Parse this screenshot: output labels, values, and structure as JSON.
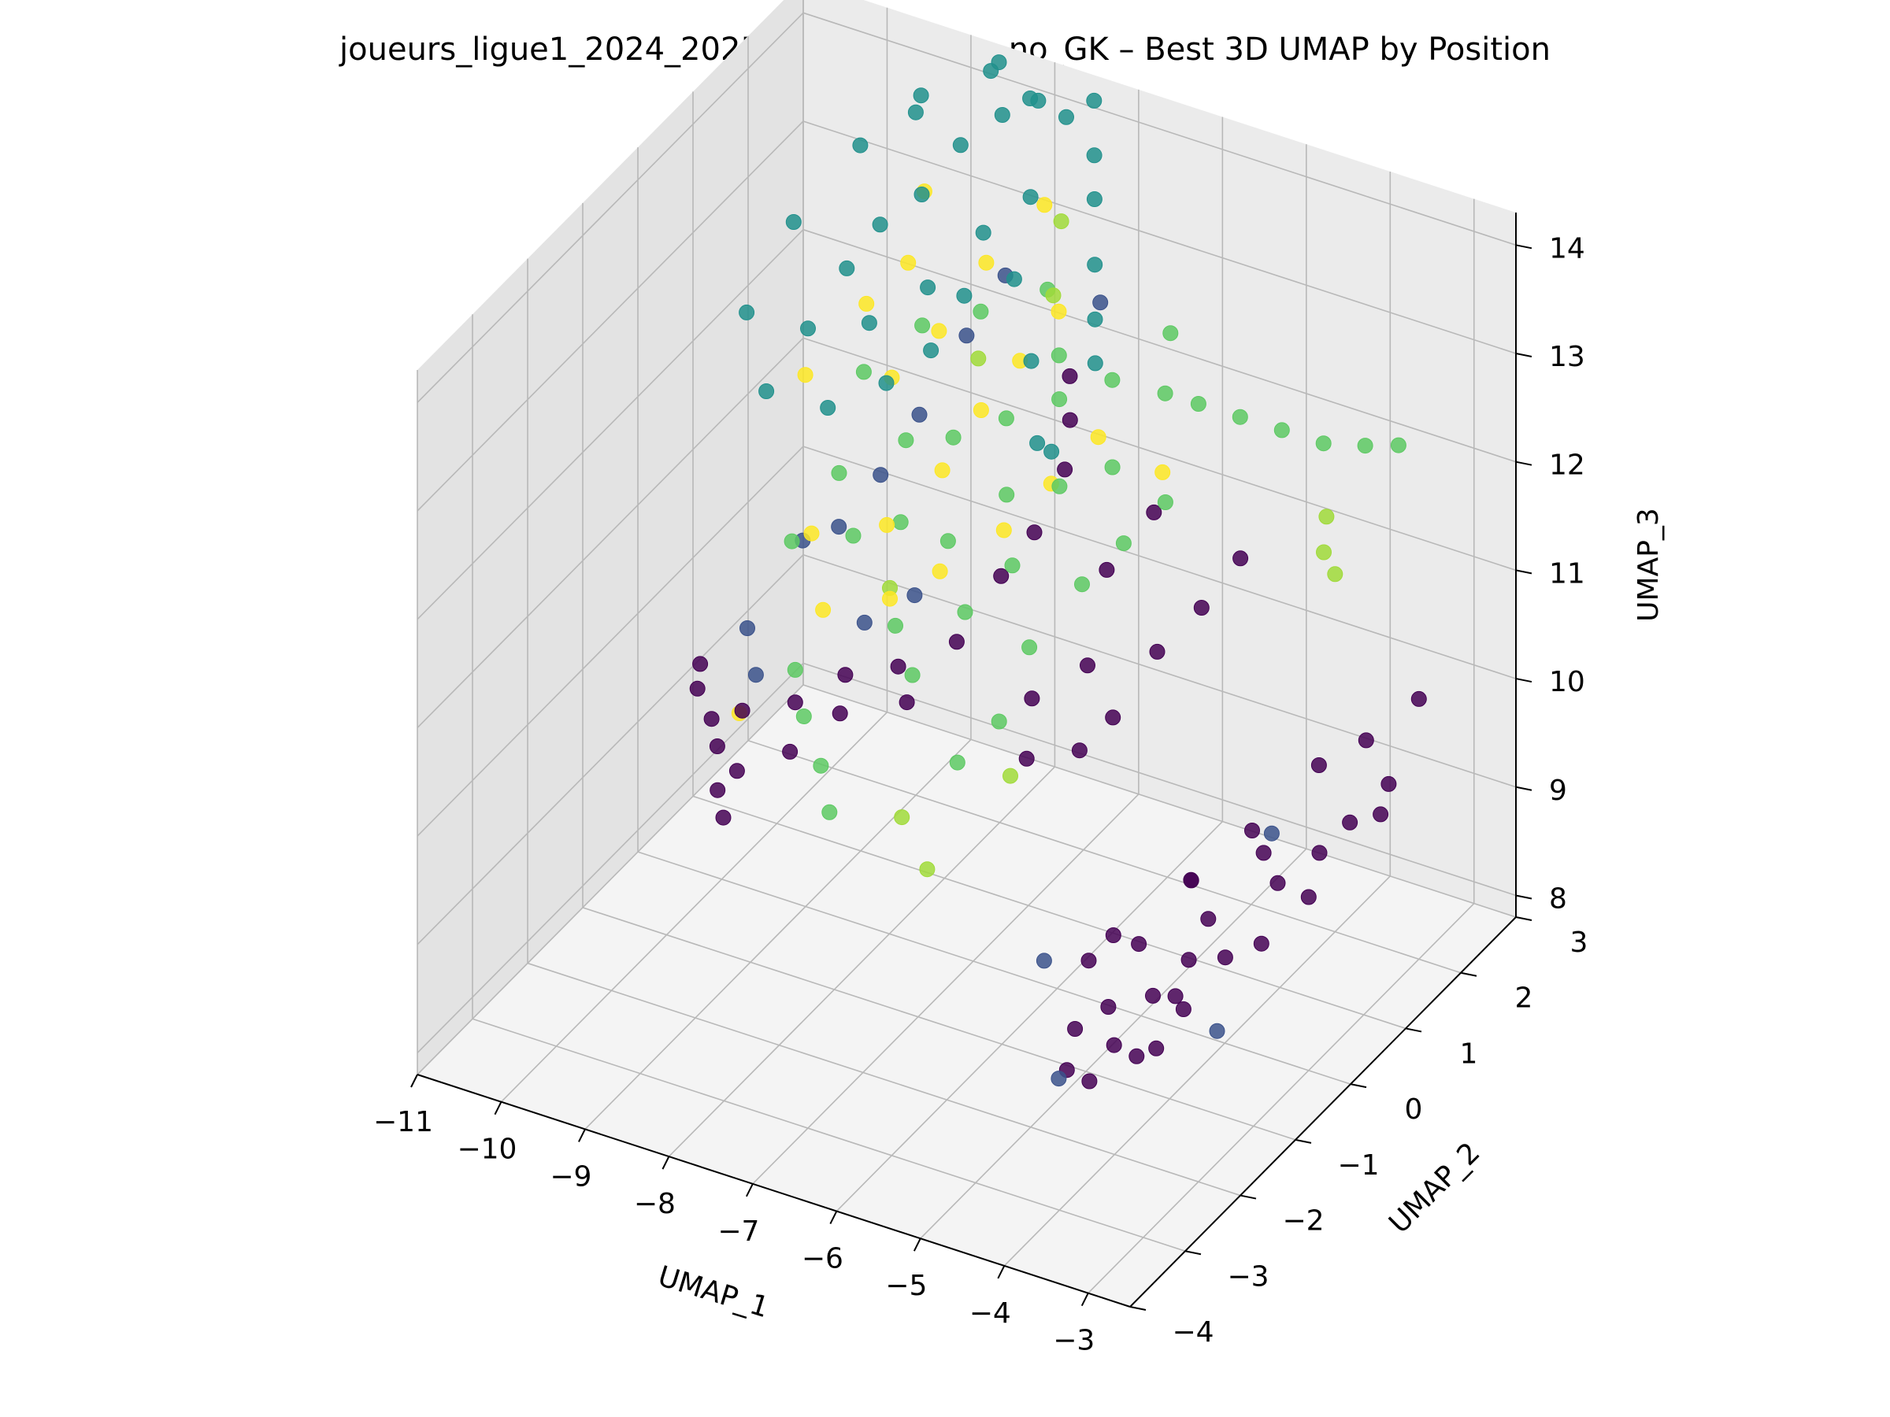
{
  "chart_data": {
    "type": "scatter",
    "title": "joueurs_ligue1_2024_2025_clean_custom_no_GK – Best 3D UMAP by Position",
    "xlabel": "UMAP_1",
    "ylabel": "UMAP_2",
    "zlabel": "UMAP_3",
    "xlim": [
      -11,
      -2.5
    ],
    "ylim": [
      -4,
      3
    ],
    "zlim": [
      7.8,
      14.3
    ],
    "x_ticks": [
      "−11",
      "−10",
      "−9",
      "−8",
      "−7",
      "−6",
      "−5",
      "−4",
      "−3"
    ],
    "y_ticks": [
      "−4",
      "−3",
      "−2",
      "−1",
      "0",
      "1",
      "2",
      "3"
    ],
    "z_ticks": [
      "8",
      "9",
      "10",
      "11",
      "12",
      "13",
      "14"
    ],
    "grid": true,
    "colormap": "viridis",
    "colors": [
      "#440154",
      "#3b528b",
      "#21908c",
      "#5dc963",
      "#a0da39",
      "#fde725"
    ],
    "series": [
      {
        "color": "#440154",
        "points": [
          [
            -4.8,
            -1.5,
            8.5
          ],
          [
            -4.6,
            -1.2,
            8.6
          ],
          [
            -4.4,
            -1.4,
            8.4
          ],
          [
            -4.2,
            -1.0,
            8.7
          ],
          [
            -4.0,
            -1.6,
            8.5
          ],
          [
            -3.8,
            -1.2,
            8.9
          ],
          [
            -4.5,
            -0.8,
            9.0
          ],
          [
            -4.1,
            -0.5,
            8.8
          ],
          [
            -3.9,
            -0.9,
            8.6
          ],
          [
            -4.7,
            -1.8,
            8.3
          ],
          [
            -4.3,
            -2.0,
            8.4
          ],
          [
            -3.7,
            -1.7,
            8.7
          ],
          [
            -4.9,
            -1.1,
            8.9
          ],
          [
            -4.0,
            -0.3,
            9.1
          ],
          [
            -3.6,
            -0.6,
            9.0
          ],
          [
            -4.4,
            0.0,
            9.2
          ],
          [
            -3.5,
            0.2,
            9.3
          ],
          [
            -3.3,
            -0.4,
            9.1
          ],
          [
            -3.2,
            0.5,
            9.5
          ],
          [
            -3.0,
            0.0,
            9.4
          ],
          [
            -3.1,
            0.9,
            9.6
          ],
          [
            -2.9,
            1.3,
            9.8
          ],
          [
            -3.3,
            1.5,
            10.0
          ],
          [
            -3.0,
            2.0,
            10.2
          ],
          [
            -2.8,
            1.0,
            9.7
          ],
          [
            -3.6,
            1.1,
            9.9
          ],
          [
            -3.8,
            0.4,
            9.4
          ],
          [
            -4.2,
            0.8,
            9.3
          ],
          [
            -4.6,
            0.3,
            9.0
          ],
          [
            -5.0,
            -0.5,
            8.8
          ],
          [
            -9.6,
            -1.0,
            10.4
          ],
          [
            -9.5,
            -1.2,
            10.3
          ],
          [
            -9.2,
            -1.4,
            10.2
          ],
          [
            -9.0,
            -1.6,
            10.1
          ],
          [
            -8.8,
            -1.9,
            9.9
          ],
          [
            -8.6,
            -2.1,
            9.8
          ],
          [
            -8.9,
            -1.3,
            10.3
          ],
          [
            -8.7,
            -1.7,
            10.0
          ],
          [
            -8.4,
            -1.1,
            10.4
          ],
          [
            -8.2,
            -1.5,
            10.2
          ],
          [
            -8.0,
            -0.8,
            10.6
          ],
          [
            -7.8,
            -1.2,
            10.5
          ],
          [
            -7.5,
            -0.6,
            10.7
          ],
          [
            -7.2,
            -0.9,
            10.6
          ],
          [
            -7.0,
            -0.3,
            10.9
          ],
          [
            -6.8,
            0.2,
            11.3
          ],
          [
            -6.6,
            0.5,
            11.6
          ],
          [
            -6.5,
            0.9,
            12.0
          ],
          [
            -6.7,
            1.3,
            12.2
          ],
          [
            -6.9,
            1.6,
            12.4
          ],
          [
            -5.2,
            0.6,
            10.8
          ],
          [
            -5.0,
            1.1,
            11.0
          ],
          [
            -4.8,
            1.5,
            11.3
          ],
          [
            -5.4,
            0.1,
            10.4
          ],
          [
            -5.6,
            -0.2,
            10.2
          ],
          [
            -5.9,
            0.4,
            10.6
          ],
          [
            -6.1,
            -0.4,
            10.1
          ],
          [
            -6.3,
            0.0,
            10.4
          ],
          [
            -6.0,
            0.9,
            11.2
          ],
          [
            -5.7,
            1.3,
            11.6
          ]
        ]
      },
      {
        "color": "#3b528b",
        "points": [
          [
            -9.3,
            -0.6,
            10.6
          ],
          [
            -9.0,
            -0.9,
            10.4
          ],
          [
            -8.8,
            0.3,
            11.2
          ],
          [
            -8.5,
            0.6,
            11.6
          ],
          [
            -8.3,
            1.0,
            12.0
          ],
          [
            -8.0,
            1.4,
            12.6
          ],
          [
            -7.8,
            1.8,
            13.0
          ],
          [
            -7.7,
            0.0,
            11.0
          ],
          [
            -8.1,
            -0.3,
            10.8
          ],
          [
            -9.1,
            0.1,
            11.1
          ],
          [
            -5.3,
            -1.3,
            8.9
          ],
          [
            -4.6,
            -2.1,
            8.4
          ],
          [
            -3.9,
            0.7,
            9.4
          ],
          [
            -3.5,
            -0.9,
            8.5
          ],
          [
            -6.8,
            2.0,
            12.9
          ]
        ]
      },
      {
        "color": "#21908c",
        "points": [
          [
            -9.6,
            0.2,
            12.3
          ],
          [
            -9.3,
            0.5,
            12.8
          ],
          [
            -9.1,
            0.9,
            13.2
          ],
          [
            -8.9,
            1.2,
            13.5
          ],
          [
            -8.6,
            1.5,
            13.7
          ],
          [
            -8.4,
            1.9,
            14.0
          ],
          [
            -8.1,
            2.2,
            14.2
          ],
          [
            -7.9,
            2.4,
            14.3
          ],
          [
            -7.6,
            2.6,
            14.1
          ],
          [
            -7.4,
            2.8,
            14.2
          ],
          [
            -7.2,
            2.5,
            13.9
          ],
          [
            -7.0,
            2.2,
            13.7
          ],
          [
            -6.8,
            1.9,
            13.3
          ],
          [
            -6.6,
            1.6,
            13.0
          ],
          [
            -6.4,
            1.3,
            12.8
          ],
          [
            -8.7,
            0.7,
            12.9
          ],
          [
            -8.2,
            1.0,
            13.2
          ],
          [
            -7.8,
            1.4,
            13.6
          ],
          [
            -7.5,
            1.8,
            13.8
          ],
          [
            -9.4,
            1.6,
            13.9
          ],
          [
            -9.0,
            2.0,
            14.1
          ],
          [
            -8.5,
            2.6,
            14.3
          ],
          [
            -8.8,
            0.1,
            12.4
          ],
          [
            -8.3,
            0.4,
            12.6
          ],
          [
            -7.9,
            0.6,
            12.9
          ],
          [
            -6.9,
            0.9,
            12.9
          ],
          [
            -6.5,
            0.4,
            12.5
          ],
          [
            -9.8,
            1.0,
            13.4
          ],
          [
            -9.9,
            0.3,
            12.9
          ],
          [
            -8.6,
            2.9,
            14.2
          ],
          [
            -7.3,
            1.2,
            13.4
          ],
          [
            -7.7,
            0.9,
            13.3
          ],
          [
            -6.2,
            0.2,
            12.6
          ],
          [
            -8.0,
            2.7,
            14.1
          ],
          [
            -9.2,
            2.4,
            14.0
          ]
        ]
      },
      {
        "color": "#5dc963",
        "points": [
          [
            -8.9,
            -0.4,
            11.4
          ],
          [
            -8.6,
            0.0,
            11.9
          ],
          [
            -8.3,
            -0.2,
            11.5
          ],
          [
            -8.0,
            0.3,
            12.2
          ],
          [
            -7.8,
            -0.1,
            11.7
          ],
          [
            -7.5,
            0.4,
            12.3
          ],
          [
            -7.3,
            0.0,
            11.6
          ],
          [
            -7.0,
            0.6,
            12.5
          ],
          [
            -6.8,
            0.3,
            12.0
          ],
          [
            -6.5,
            0.8,
            12.7
          ],
          [
            -6.3,
            0.5,
            12.1
          ],
          [
            -6.0,
            1.0,
            12.9
          ],
          [
            -5.8,
            0.7,
            12.3
          ],
          [
            -5.5,
            1.2,
            12.8
          ],
          [
            -5.3,
            1.5,
            12.6
          ],
          [
            -5.0,
            1.8,
            12.4
          ],
          [
            -4.7,
            2.1,
            12.2
          ],
          [
            -4.4,
            2.4,
            12.0
          ],
          [
            -4.1,
            2.7,
            11.9
          ],
          [
            -3.9,
            3.0,
            11.8
          ],
          [
            -7.6,
            -0.5,
            11.0
          ],
          [
            -7.2,
            -0.8,
            10.8
          ],
          [
            -6.9,
            -0.3,
            11.2
          ],
          [
            -6.6,
            0.1,
            11.5
          ],
          [
            -6.2,
            -0.2,
            11.0
          ],
          [
            -5.9,
            0.3,
            11.4
          ],
          [
            -5.6,
            0.6,
            11.7
          ],
          [
            -5.3,
            0.9,
            12.0
          ],
          [
            -8.4,
            -1.1,
            10.7
          ],
          [
            -8.1,
            -1.4,
            10.5
          ],
          [
            -7.7,
            -1.7,
            10.3
          ],
          [
            -7.4,
            -2.0,
            10.1
          ],
          [
            -6.4,
            -1.2,
            10.4
          ],
          [
            -6.1,
            -0.9,
            10.7
          ],
          [
            -8.7,
            0.6,
            12.5
          ],
          [
            -8.2,
            0.9,
            12.9
          ],
          [
            -7.7,
            1.2,
            13.0
          ],
          [
            -7.1,
            1.5,
            13.2
          ],
          [
            -6.7,
            1.1,
            12.9
          ],
          [
            -5.7,
            1.6,
            13.1
          ]
        ]
      },
      {
        "color": "#a0da39",
        "points": [
          [
            -4.3,
            2.3,
            11.4
          ],
          [
            -4.2,
            2.1,
            11.2
          ],
          [
            -4.0,
            2.0,
            11.1
          ],
          [
            -6.8,
            -1.6,
            10.0
          ],
          [
            -6.3,
            -1.9,
            9.8
          ],
          [
            -7.4,
            0.7,
            12.9
          ],
          [
            -6.9,
            1.3,
            13.3
          ],
          [
            -7.6,
            -0.6,
            11.4
          ],
          [
            -5.9,
            -1.0,
            10.3
          ],
          [
            -7.2,
            1.9,
            13.6
          ]
        ]
      },
      {
        "color": "#fde725",
        "points": [
          [
            -9.2,
            0.3,
            12.5
          ],
          [
            -8.8,
            0.8,
            13.0
          ],
          [
            -8.5,
            1.1,
            13.3
          ],
          [
            -8.3,
            0.5,
            12.6
          ],
          [
            -8.0,
            0.9,
            12.9
          ],
          [
            -7.7,
            1.3,
            13.4
          ],
          [
            -7.5,
            0.2,
            12.1
          ],
          [
            -7.3,
            0.6,
            12.5
          ],
          [
            -7.1,
            1.0,
            12.8
          ],
          [
            -6.9,
            1.4,
            13.1
          ],
          [
            -6.7,
            0.1,
            11.8
          ],
          [
            -6.4,
            0.5,
            12.1
          ],
          [
            -6.1,
            0.9,
            12.4
          ],
          [
            -5.4,
            1.0,
            12.2
          ],
          [
            -7.9,
            -0.2,
            11.7
          ],
          [
            -7.6,
            -0.6,
            11.3
          ],
          [
            -7.2,
            -0.3,
            11.5
          ],
          [
            -8.6,
            -0.5,
            11.6
          ],
          [
            -8.2,
            -0.9,
            11.2
          ],
          [
            -7.4,
            1.9,
            13.7
          ],
          [
            -8.7,
            1.7,
            13.6
          ],
          [
            -9.0,
            -1.2,
            10.2
          ]
        ]
      }
    ]
  }
}
